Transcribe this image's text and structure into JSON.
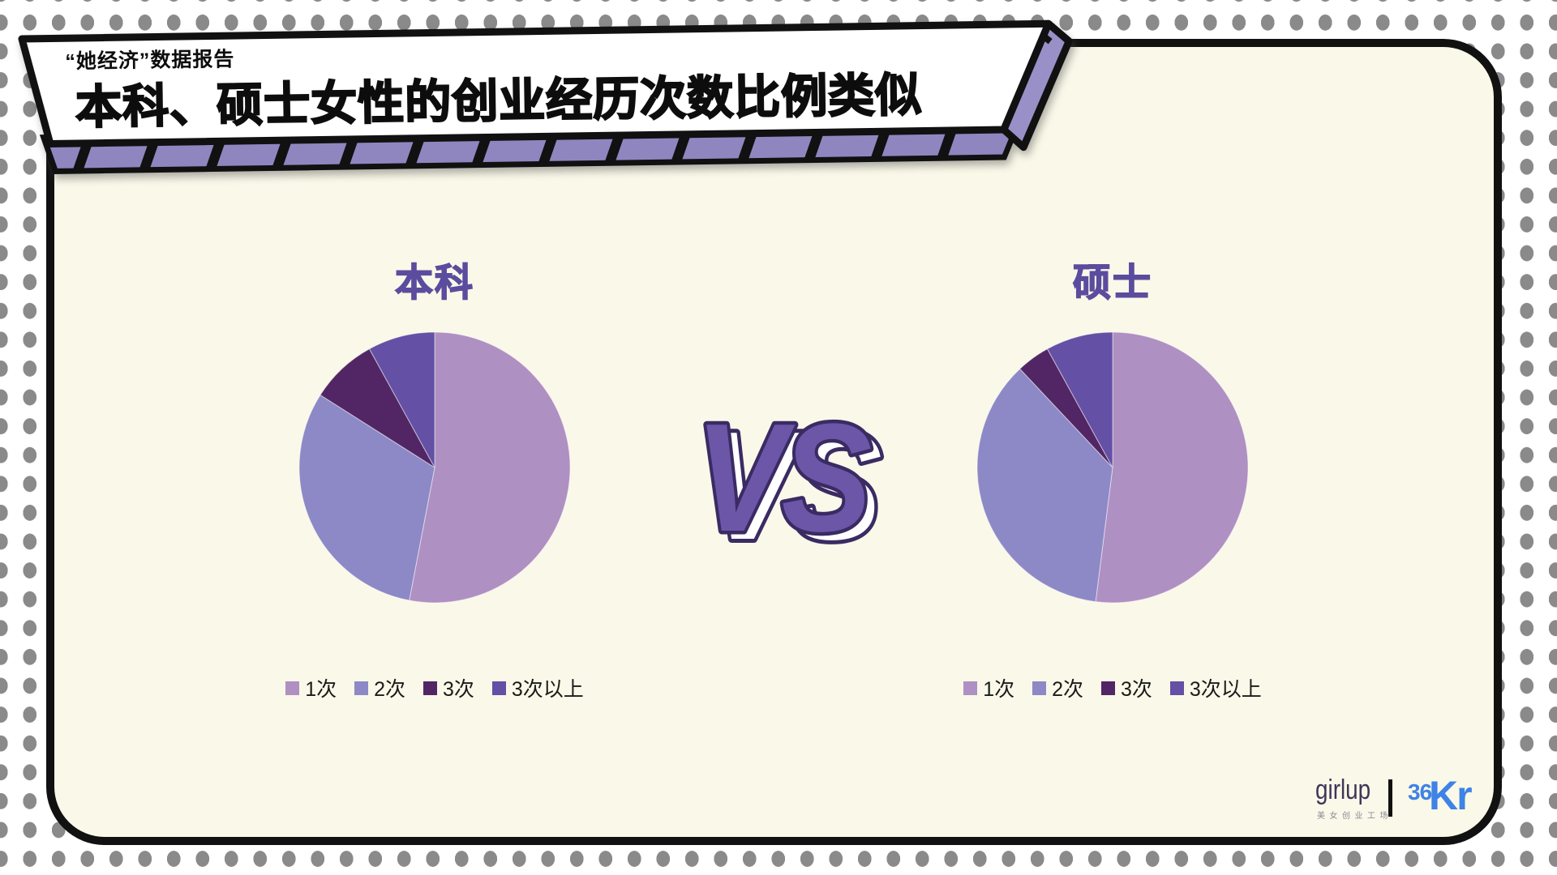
{
  "banner": {
    "tag": "“她经济”数据报告",
    "title": "本科、硕士女性的创业经历次数比例类似"
  },
  "vs_label": "VS",
  "chart_data": [
    {
      "type": "pie",
      "title": "本科",
      "categories": [
        "1次",
        "2次",
        "3次",
        "3次以上"
      ],
      "values": [
        53,
        31,
        8,
        8
      ],
      "unit": "percent",
      "colors": [
        "#AF90C2",
        "#8D89C6",
        "#522664",
        "#6450A5"
      ],
      "start_angle_deg": 0,
      "direction": "clockwise",
      "legend_position": "bottom"
    },
    {
      "type": "pie",
      "title": "硕士",
      "categories": [
        "1次",
        "2次",
        "3次",
        "3次以上"
      ],
      "values": [
        52,
        36,
        4,
        8
      ],
      "unit": "percent",
      "colors": [
        "#AF90C2",
        "#8D89C6",
        "#522664",
        "#6450A5"
      ],
      "start_angle_deg": 0,
      "direction": "clockwise",
      "legend_position": "bottom"
    }
  ],
  "theme": {
    "card_background": "#FAF8E8",
    "dot_color": "#8A8A8A",
    "ribbon_purple": "#8F86C0",
    "banner_side_purple": "#9A90C8",
    "pie_title_purple": "#5B4C9E",
    "vs_purple": "#6C56A8",
    "vs_outline": "#3A2B63",
    "kr_blue": "#3E83E6"
  },
  "footer": {
    "brand_left": "girlup",
    "brand_left_tagline": "美女创业工场",
    "brand_right_top": "36",
    "brand_right_main": "Kr"
  }
}
